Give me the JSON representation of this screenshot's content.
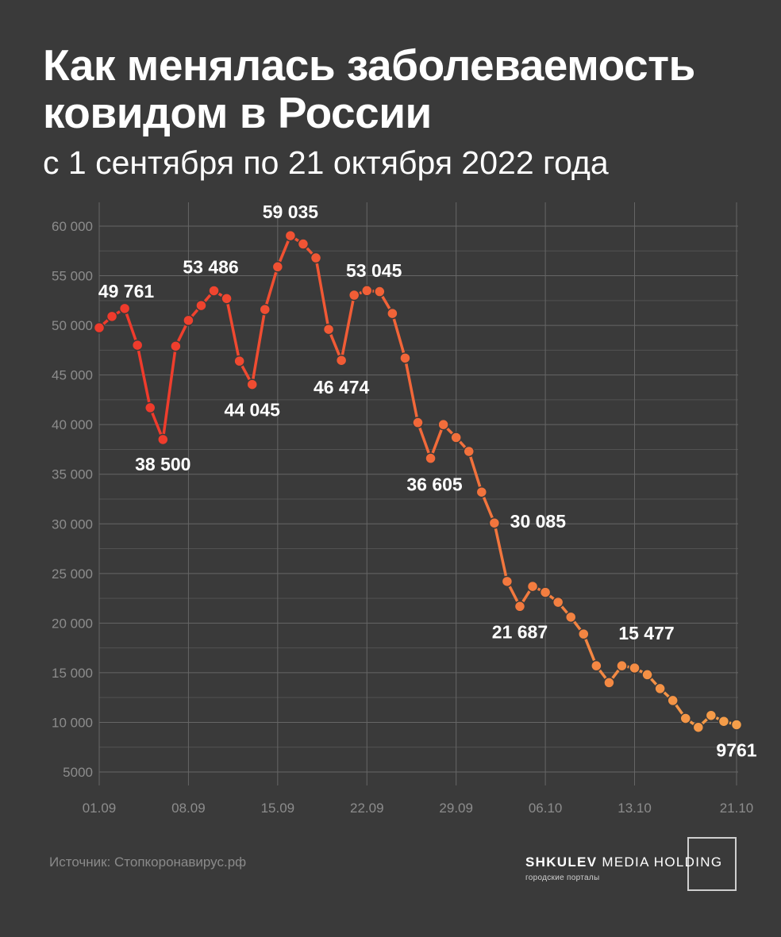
{
  "header": {
    "title": "Как менялась заболеваемость ковидом в России",
    "subtitle": "с 1 сентября по 21 октября 2022 года"
  },
  "footer": {
    "source": "Источник: Стопкоронавирус.рф",
    "brand_bold": "SHKULEV",
    "brand_rest": " MEDIA HOLDING",
    "brand_tagline": "городские порталы"
  },
  "colors": {
    "background": "#3a3a3a",
    "line_start": "#ef3b2c",
    "line_end": "#f5a04a",
    "grid": "#666666",
    "axis_text": "#8c8c8c",
    "label_text": "#ffffff"
  },
  "chart_data": {
    "type": "line",
    "title": "Как менялась заболеваемость ковидом в России",
    "subtitle": "с 1 сентября по 21 октября 2022 года",
    "x": [
      "01.09",
      "02.09",
      "03.09",
      "04.09",
      "05.09",
      "06.09",
      "07.09",
      "08.09",
      "09.09",
      "10.09",
      "11.09",
      "12.09",
      "13.09",
      "14.09",
      "15.09",
      "16.09",
      "17.09",
      "18.09",
      "19.09",
      "20.09",
      "21.09",
      "22.09",
      "23.09",
      "24.09",
      "25.09",
      "26.09",
      "27.09",
      "28.09",
      "29.09",
      "30.09",
      "01.10",
      "02.10",
      "03.10",
      "04.10",
      "05.10",
      "06.10",
      "07.10",
      "08.10",
      "09.10",
      "10.10",
      "11.10",
      "12.10",
      "13.10",
      "14.10",
      "15.10",
      "16.10",
      "17.10",
      "18.10",
      "19.10",
      "20.10",
      "21.10"
    ],
    "values": [
      49761,
      50900,
      51700,
      48000,
      41700,
      38500,
      47900,
      50500,
      52000,
      53486,
      52700,
      46400,
      44045,
      51600,
      55900,
      59035,
      58200,
      56800,
      49600,
      46474,
      53045,
      53500,
      53400,
      51200,
      46700,
      40200,
      36605,
      40000,
      38700,
      37300,
      33200,
      30085,
      24200,
      21687,
      23700,
      23100,
      22100,
      20600,
      18900,
      15700,
      14000,
      15700,
      15477,
      14800,
      13400,
      12200,
      10400,
      9500,
      10700,
      10100,
      9761
    ],
    "x_ticks": [
      "01.09",
      "08.09",
      "15.09",
      "22.09",
      "29.09",
      "06.10",
      "13.10",
      "21.10"
    ],
    "y_ticks": [
      5000,
      10000,
      15000,
      20000,
      25000,
      30000,
      35000,
      40000,
      45000,
      50000,
      55000,
      60000
    ],
    "y_tick_labels": [
      "5000",
      "10 000",
      "15 000",
      "20 000",
      "25 000",
      "30 000",
      "35 000",
      "40 000",
      "45 000",
      "50 000",
      "55 000",
      "60 000"
    ],
    "ylim": [
      5000,
      60000
    ],
    "grid": true,
    "annotations": [
      {
        "index": 0,
        "text": "49 761"
      },
      {
        "index": 5,
        "text": "38 500"
      },
      {
        "index": 9,
        "text": "53 486"
      },
      {
        "index": 12,
        "text": "44 045"
      },
      {
        "index": 15,
        "text": "59 035"
      },
      {
        "index": 19,
        "text": "46 474"
      },
      {
        "index": 20,
        "text": "53 045"
      },
      {
        "index": 26,
        "text": "36 605"
      },
      {
        "index": 31,
        "text": "30 085"
      },
      {
        "index": 33,
        "text": "21 687"
      },
      {
        "index": 42,
        "text": "15 477"
      },
      {
        "index": 50,
        "text": "9761"
      }
    ]
  }
}
